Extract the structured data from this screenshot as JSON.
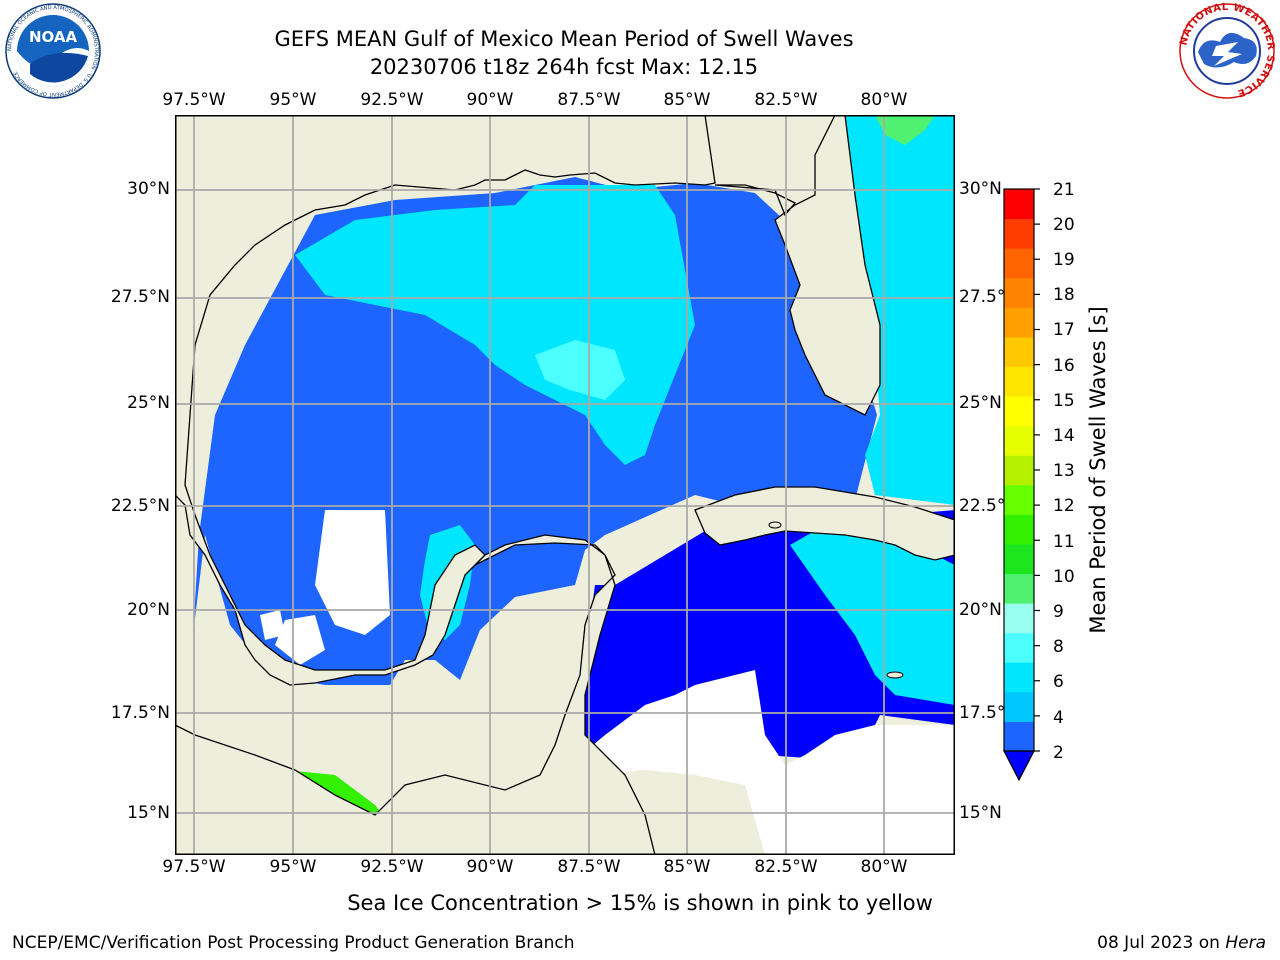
{
  "header": {
    "title_line1": "GEFS MEAN Gulf of Mexico Mean Period of Swell Waves",
    "title_line2": "20230706 t18z 264h fcst   Max: 12.15"
  },
  "logos": {
    "noaa": {
      "text": "NOAA",
      "ring_text": "NATIONAL OCEANIC AND ATMOSPHERIC ADMINISTRATION · U.S. DEPARTMENT OF COMMERCE"
    },
    "nws": {
      "ring_text": "NATIONAL WEATHER SERVICE"
    }
  },
  "map": {
    "lon_labels": [
      "97.5°W",
      "95°W",
      "92.5°W",
      "90°W",
      "87.5°W",
      "85°W",
      "82.5°W",
      "80°W"
    ],
    "lat_labels": [
      "30°N",
      "27.5°N",
      "25°N",
      "22.5°N",
      "20°N",
      "17.5°N",
      "15°N"
    ],
    "lon_range": [
      -98,
      -78.3
    ],
    "lat_range": [
      14,
      31.5
    ],
    "colors": {
      "land": "#eeeedd",
      "coast": "#000000",
      "grid": "#aaaaaa"
    }
  },
  "colorbar": {
    "label": "Mean Period of Swell Waves [s]",
    "ticks": [
      "21",
      "20",
      "19",
      "18",
      "17",
      "16",
      "15",
      "14",
      "13",
      "12",
      "11",
      "10",
      "9",
      "8",
      "6",
      "4",
      "2"
    ],
    "colors": [
      "#1e64ff",
      "#00c8ff",
      "#00e6ff",
      "#4cffff",
      "#99ffee",
      "#50f070",
      "#1ee61e",
      "#32f000",
      "#66ff00",
      "#b4f000",
      "#e6ff00",
      "#ffff00",
      "#ffe600",
      "#ffc800",
      "#ffa000",
      "#ff8200",
      "#ff6400",
      "#ff3c00",
      "#ff0000"
    ],
    "extend_color": "#0000ff"
  },
  "note": "Sea Ice Concentration > 15% is shown in pink to yellow",
  "footer": {
    "left": "NCEP/EMC/Verification Post Processing Product Generation Branch",
    "date": "08 Jul 2023 on ",
    "machine": "Hera"
  }
}
